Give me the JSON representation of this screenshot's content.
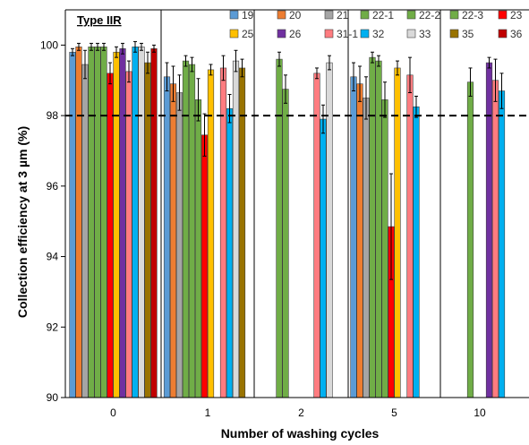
{
  "chart_data": {
    "type": "bar",
    "title": "",
    "annotation": "Type IIR",
    "xlabel": "Number of washing cycles",
    "ylabel": "Collection efficiency at 3 µm (%)",
    "ylim": [
      90,
      101
    ],
    "yticks": [
      "90",
      "92",
      "94",
      "96",
      "98",
      "100"
    ],
    "reference_line": 98,
    "categories": [
      "0",
      "1",
      "2",
      "5",
      "10"
    ],
    "series": [
      {
        "name": "19",
        "color": "#5b9bd5",
        "values": [
          99.8,
          99.1,
          null,
          99.1,
          null
        ],
        "err": [
          0.1,
          0.4,
          null,
          0.4,
          null
        ]
      },
      {
        "name": "20",
        "color": "#ed7d31",
        "values": [
          99.95,
          98.9,
          null,
          98.9,
          null
        ],
        "err": [
          0.1,
          0.5,
          null,
          0.5,
          null
        ]
      },
      {
        "name": "21",
        "color": "#a5a5a5",
        "values": [
          99.45,
          98.65,
          null,
          98.5,
          null
        ],
        "err": [
          0.4,
          0.5,
          null,
          0.6,
          null
        ]
      },
      {
        "name": "22-1",
        "color": "#70ad47",
        "values": [
          99.95,
          99.55,
          99.6,
          99.65,
          null
        ],
        "err": [
          0.1,
          0.15,
          0.2,
          0.15,
          null
        ]
      },
      {
        "name": "22-2",
        "color": "#70ad47",
        "values": [
          99.95,
          99.45,
          98.75,
          99.55,
          null
        ],
        "err": [
          0.1,
          0.2,
          0.4,
          0.15,
          null
        ]
      },
      {
        "name": "22-3",
        "color": "#70ad47",
        "values": [
          99.95,
          98.45,
          null,
          98.45,
          98.95
        ],
        "err": [
          0.1,
          0.6,
          null,
          0.5,
          0.4
        ]
      },
      {
        "name": "23",
        "color": "#ff0000",
        "values": [
          99.2,
          97.45,
          null,
          94.85,
          null
        ],
        "err": [
          0.3,
          0.6,
          null,
          1.5,
          null
        ]
      },
      {
        "name": "25",
        "color": "#ffc000",
        "values": [
          99.8,
          99.3,
          null,
          99.35,
          null
        ],
        "err": [
          0.15,
          0.15,
          null,
          0.2,
          null
        ]
      },
      {
        "name": "26",
        "color": "#7030a0",
        "values": [
          99.9,
          null,
          null,
          null,
          99.5
        ],
        "err": [
          0.15,
          null,
          null,
          null,
          0.15
        ]
      },
      {
        "name": "31-1",
        "color": "#ff7c80",
        "values": [
          99.25,
          99.35,
          99.2,
          99.15,
          99.0
        ],
        "err": [
          0.3,
          0.35,
          0.15,
          0.5,
          0.6
        ]
      },
      {
        "name": "32",
        "color": "#00b0f0",
        "values": [
          99.95,
          98.2,
          97.9,
          98.25,
          98.7
        ],
        "err": [
          0.15,
          0.4,
          0.4,
          0.3,
          0.5
        ]
      },
      {
        "name": "33",
        "color": "#d9d9d9",
        "values": [
          99.95,
          99.55,
          99.5,
          null,
          null
        ],
        "err": [
          0.1,
          0.3,
          0.2,
          null,
          null
        ]
      },
      {
        "name": "35",
        "color": "#997300",
        "values": [
          99.5,
          99.35,
          null,
          null,
          null
        ],
        "err": [
          0.3,
          0.25,
          null,
          null,
          null
        ]
      },
      {
        "name": "36",
        "color": "#c00000",
        "values": [
          99.9,
          null,
          null,
          null,
          null
        ],
        "err": [
          0.1,
          null,
          null,
          null,
          null
        ]
      }
    ],
    "legend_rows": [
      [
        "19",
        "20",
        "21",
        "22-1",
        "22-2",
        "22-3",
        "23"
      ],
      [
        "25",
        "26",
        "31-1",
        "32",
        "33",
        "35",
        "36"
      ]
    ],
    "legend_position": "top-right",
    "grid": false
  }
}
